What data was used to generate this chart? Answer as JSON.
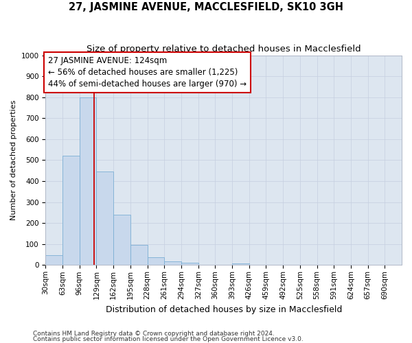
{
  "title": "27, JASMINE AVENUE, MACCLESFIELD, SK10 3GH",
  "subtitle": "Size of property relative to detached houses in Macclesfield",
  "xlabel": "Distribution of detached houses by size in Macclesfield",
  "ylabel": "Number of detached properties",
  "footnote1": "Contains HM Land Registry data © Crown copyright and database right 2024.",
  "footnote2": "Contains public sector information licensed under the Open Government Licence v3.0.",
  "bin_labels": [
    "30sqm",
    "63sqm",
    "96sqm",
    "129sqm",
    "162sqm",
    "195sqm",
    "228sqm",
    "261sqm",
    "294sqm",
    "327sqm",
    "360sqm",
    "393sqm",
    "426sqm",
    "459sqm",
    "492sqm",
    "525sqm",
    "558sqm",
    "591sqm",
    "624sqm",
    "657sqm",
    "690sqm"
  ],
  "bin_edges": [
    30,
    63,
    96,
    129,
    162,
    195,
    228,
    261,
    294,
    327,
    360,
    393,
    426,
    459,
    492,
    525,
    558,
    591,
    624,
    657,
    690,
    723
  ],
  "bar_heights": [
    48,
    520,
    800,
    445,
    240,
    97,
    37,
    18,
    10,
    0,
    0,
    8,
    0,
    0,
    0,
    0,
    0,
    0,
    0,
    0,
    0
  ],
  "bar_color": "#c8d8ec",
  "bar_edge_color": "#7bafd4",
  "property_size": 124,
  "vline_color": "#cc0000",
  "annotation_line1": "27 JASMINE AVENUE: 124sqm",
  "annotation_line2": "← 56% of detached houses are smaller (1,225)",
  "annotation_line3": "44% of semi-detached houses are larger (970) →",
  "annotation_box_color": "#ffffff",
  "annotation_box_edge": "#cc0000",
  "ylim": [
    0,
    1000
  ],
  "yticks": [
    0,
    100,
    200,
    300,
    400,
    500,
    600,
    700,
    800,
    900,
    1000
  ],
  "grid_color": "#c5cfe0",
  "bg_color": "#dde6f0",
  "title_fontsize": 10.5,
  "subtitle_fontsize": 9.5,
  "ylabel_fontsize": 8,
  "xlabel_fontsize": 9,
  "footnote_fontsize": 6.5,
  "tick_fontsize": 7.5,
  "annot_fontsize": 8.5
}
